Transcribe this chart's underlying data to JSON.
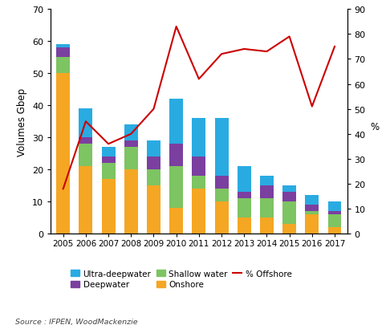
{
  "years": [
    2005,
    2006,
    2007,
    2008,
    2009,
    2010,
    2011,
    2012,
    2013,
    2014,
    2015,
    2016,
    2017
  ],
  "onshore": [
    50,
    21,
    17,
    20,
    15,
    8,
    14,
    10,
    5,
    5,
    3,
    6,
    2
  ],
  "shallow_water": [
    5,
    7,
    5,
    7,
    5,
    13,
    4,
    4,
    6,
    6,
    7,
    1,
    4
  ],
  "deepwater": [
    3,
    2,
    2,
    2,
    4,
    7,
    6,
    4,
    2,
    4,
    3,
    2,
    1
  ],
  "ultra_deepwater": [
    1,
    9,
    3,
    5,
    5,
    14,
    12,
    18,
    8,
    3,
    2,
    3,
    3
  ],
  "pct_offshore": [
    18,
    45,
    36,
    40,
    50,
    83,
    62,
    72,
    74,
    73,
    79,
    51,
    75
  ],
  "bar_colors": {
    "onshore": "#F5A623",
    "shallow_water": "#7DC462",
    "deepwater": "#7B3FA0",
    "ultra_deepwater": "#29ABE2"
  },
  "line_color": "#CC0000",
  "ylim_left": [
    0,
    70
  ],
  "ylim_right": [
    0,
    90
  ],
  "yticks_left": [
    0,
    10,
    20,
    30,
    40,
    50,
    60,
    70
  ],
  "yticks_right": [
    0,
    10,
    20,
    30,
    40,
    50,
    60,
    70,
    80,
    90
  ],
  "ylabel_left": "Volumes Gbep",
  "ylabel_right": "%",
  "source": "Source : IFPEN, WoodMackenzie",
  "legend_row1": [
    "ultra_deepwater",
    "deepwater",
    "shallow_water"
  ],
  "legend_row2": [
    "onshore",
    "pct_offshore"
  ],
  "legend_labels": {
    "ultra_deepwater": "Ultra-deepwater",
    "deepwater": "Deepwater",
    "shallow_water": "Shallow water",
    "onshore": "Onshore",
    "pct_offshore": "% Offshore"
  },
  "background_color": "#ffffff",
  "figsize": [
    4.86,
    4.06
  ],
  "dpi": 100
}
